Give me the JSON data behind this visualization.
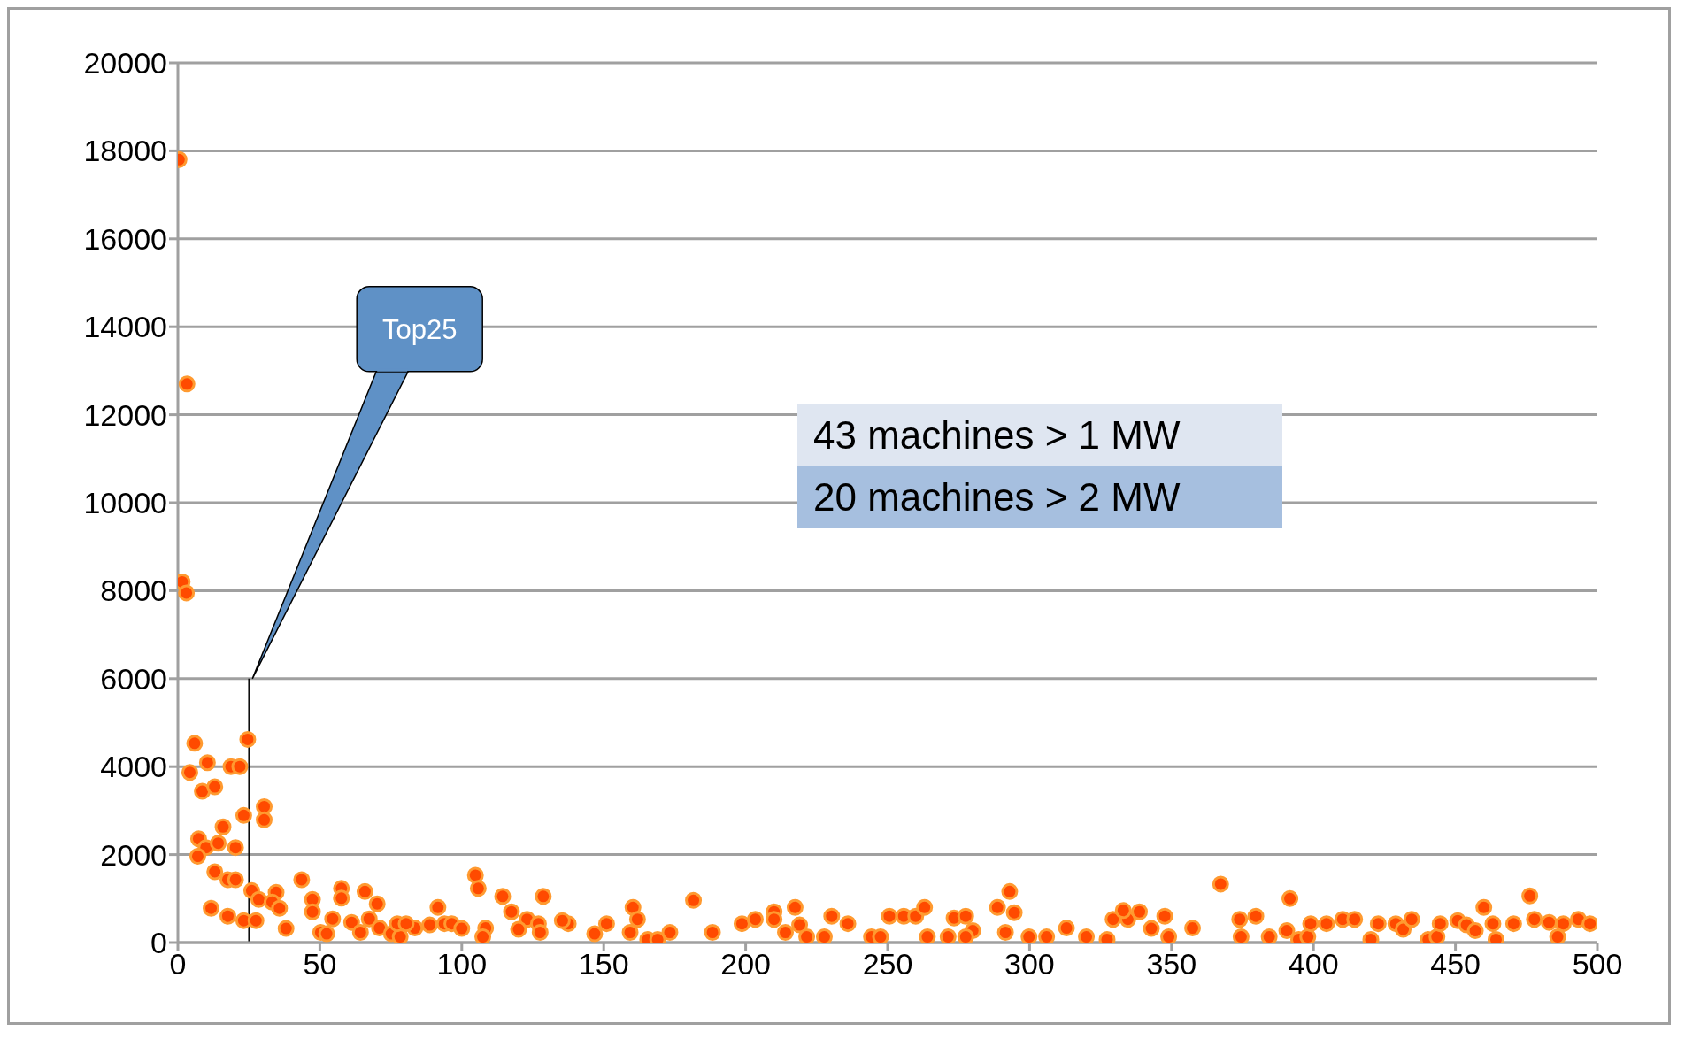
{
  "chart_data": {
    "type": "scatter",
    "x": [
      0.4,
      3.2,
      1.5,
      3,
      5.9,
      24.6,
      4.2,
      10.4,
      18.7,
      21.8,
      8.6,
      13,
      23.2,
      30.4,
      30.4,
      15.9,
      7.3,
      9.9,
      14.2,
      20.3,
      7,
      13,
      17.6,
      20.3,
      11.7,
      17.6,
      23.2,
      27.5,
      26,
      28.5,
      34.6,
      33.2,
      35.8,
      38.1,
      43.6,
      47.4,
      47.4,
      50.3,
      52.4,
      54.5,
      57.6,
      57.6,
      61.2,
      65.9,
      70.2,
      67.4,
      64.3,
      71,
      75.2,
      78.3,
      83.5,
      77.3,
      80.4,
      88.7,
      91.6,
      93.9,
      96.5,
      104.8,
      105.8,
      114.4,
      128.7,
      117.5,
      123,
      127,
      127.6,
      120,
      100,
      108.4,
      107.4,
      137.5,
      135.4,
      146.8,
      151,
      160.3,
      161.9,
      159.3,
      165.5,
      169,
      173.3,
      181.6,
      188.3,
      198.7,
      203.4,
      210,
      210,
      217.4,
      214,
      219,
      221.5,
      227.7,
      230.3,
      236,
      244.3,
      247.5,
      250.6,
      255.7,
      259.9,
      263,
      264,
      271.3,
      273.4,
      277.5,
      280,
      277.5,
      293,
      288.7,
      294.6,
      291.5,
      299.8,
      306,
      313,
      320,
      327.3,
      329.4,
      334.6,
      333,
      338.7,
      342.9,
      347.6,
      349,
      357.4,
      367.3,
      374,
      379.7,
      374.5,
      391.7,
      384.4,
      390.6,
      394.8,
      398,
      399,
      404.6,
      410.3,
      414.5,
      420.2,
      422.8,
      429,
      431.6,
      434.6,
      440.4,
      443.5,
      444.6,
      450.8,
      453.9,
      457,
      460,
      463.2,
      464.3,
      470.5,
      476.2,
      477.8,
      483,
      486,
      488,
      493.3,
      497.4
    ],
    "values": [
      17800,
      12700,
      8200,
      7950,
      4530,
      4620,
      3870,
      4090,
      4000,
      4000,
      3440,
      3540,
      2890,
      3090,
      2790,
      2630,
      2360,
      2160,
      2260,
      2160,
      1960,
      1610,
      1430,
      1430,
      780,
      600,
      500,
      500,
      1180,
      980,
      1140,
      920,
      780,
      320,
      1430,
      980,
      700,
      230,
      200,
      540,
      1230,
      1010,
      460,
      1160,
      880,
      540,
      230,
      330,
      200,
      130,
      330,
      430,
      430,
      400,
      800,
      430,
      430,
      1530,
      1230,
      1050,
      1050,
      700,
      530,
      430,
      230,
      300,
      320,
      330,
      130,
      430,
      500,
      200,
      430,
      800,
      530,
      230,
      70,
      70,
      230,
      960,
      230,
      430,
      530,
      700,
      530,
      800,
      230,
      400,
      130,
      130,
      600,
      430,
      130,
      130,
      600,
      600,
      600,
      800,
      130,
      130,
      560,
      600,
      270,
      130,
      1160,
      800,
      680,
      230,
      130,
      130,
      330,
      130,
      70,
      530,
      530,
      730,
      700,
      320,
      600,
      130,
      330,
      1330,
      530,
      600,
      130,
      1000,
      130,
      270,
      70,
      130,
      430,
      430,
      530,
      530,
      70,
      430,
      430,
      300,
      530,
      70,
      130,
      430,
      500,
      400,
      270,
      800,
      430,
      70,
      430,
      1060,
      530,
      460,
      130,
      430,
      530,
      430
    ],
    "color": "#ff4a00",
    "marker": "circle",
    "xlim": [
      0,
      500
    ],
    "xticks": [
      0,
      50,
      100,
      150,
      200,
      250,
      300,
      350,
      400,
      450,
      500
    ],
    "ylim": [
      0,
      20000
    ],
    "yticks": [
      0,
      2000,
      4000,
      6000,
      8000,
      10000,
      12000,
      14000,
      16000,
      18000,
      20000
    ],
    "grid": "y",
    "ref_lines": [
      {
        "axis": "x",
        "value": 25
      }
    ],
    "annotations": [
      "Top25",
      "43 machines > 1 MW",
      "20 machines > 2 MW"
    ]
  }
}
